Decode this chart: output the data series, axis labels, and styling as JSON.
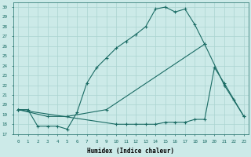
{
  "xlabel": "Humidex (Indice chaleur)",
  "bg_color": "#cceae8",
  "grid_color": "#aad4d0",
  "line_color": "#1a6b64",
  "xlim": [
    -0.5,
    23.5
  ],
  "ylim": [
    17,
    30.5
  ],
  "yticks": [
    17,
    18,
    19,
    20,
    21,
    22,
    23,
    24,
    25,
    26,
    27,
    28,
    29,
    30
  ],
  "xticks": [
    0,
    1,
    2,
    3,
    4,
    5,
    6,
    7,
    8,
    9,
    10,
    11,
    12,
    13,
    14,
    15,
    16,
    17,
    18,
    19,
    20,
    21,
    22,
    23
  ],
  "line1_x": [
    0,
    1,
    2,
    3,
    4,
    5,
    6,
    7,
    8,
    9,
    10,
    11,
    12,
    13,
    14,
    15,
    16,
    17,
    18,
    19
  ],
  "line1_y": [
    19.5,
    19.5,
    17.8,
    17.8,
    17.8,
    17.5,
    19.2,
    22.2,
    23.8,
    24.8,
    25.8,
    26.5,
    27.2,
    28.0,
    29.8,
    30.0,
    29.5,
    29.8,
    28.2,
    26.2
  ],
  "line2_x": [
    0,
    3,
    5,
    9,
    19,
    21,
    23
  ],
  "line2_y": [
    19.5,
    18.8,
    18.8,
    19.5,
    26.2,
    22.0,
    18.8
  ],
  "line3_x": [
    0,
    10,
    11,
    12,
    13,
    14,
    15,
    16,
    17,
    18,
    19,
    20,
    21,
    22,
    23
  ],
  "line3_y": [
    19.5,
    18.0,
    18.0,
    18.0,
    18.0,
    18.0,
    18.2,
    18.2,
    18.2,
    18.5,
    18.5,
    23.8,
    22.2,
    20.5,
    18.8
  ]
}
